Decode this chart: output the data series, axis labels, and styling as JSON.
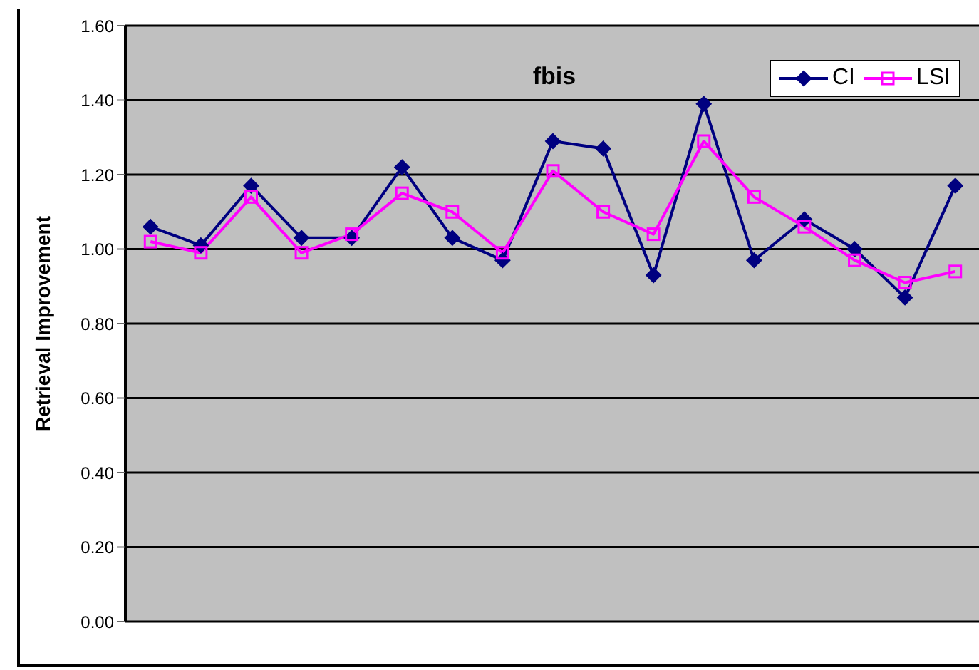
{
  "chart_data": {
    "type": "line",
    "title": "fbis",
    "ylabel": "Retrieval Improvement",
    "categories": [
      null,
      null,
      null,
      null,
      null,
      null,
      null,
      null,
      null,
      null,
      null,
      null,
      null,
      null,
      null,
      null,
      null
    ],
    "series": [
      {
        "name": "CI",
        "color": "#000080",
        "marker": "diamond",
        "values": [
          1.06,
          1.01,
          1.17,
          1.03,
          1.03,
          1.22,
          1.03,
          0.97,
          1.29,
          1.27,
          0.93,
          1.39,
          0.97,
          1.08,
          1.0,
          0.87,
          1.17
        ]
      },
      {
        "name": "LSI",
        "color": "#ff00ff",
        "marker": "square",
        "values": [
          1.02,
          0.99,
          1.14,
          0.99,
          1.04,
          1.15,
          1.1,
          0.99,
          1.21,
          1.1,
          1.04,
          1.29,
          1.14,
          1.06,
          0.97,
          0.91,
          0.94
        ]
      }
    ],
    "ylim": [
      0,
      1.6
    ],
    "yticks": [
      {
        "value": 0,
        "label": "0.00"
      },
      {
        "value": 0.2,
        "label": "0.20"
      },
      {
        "value": 0.4,
        "label": "0.40"
      },
      {
        "value": 0.6,
        "label": "0.60"
      },
      {
        "value": 0.8,
        "label": "0.80"
      },
      {
        "value": 1.0,
        "label": "1.00"
      },
      {
        "value": 1.2,
        "label": "1.20"
      },
      {
        "value": 1.4,
        "label": "1.40"
      },
      {
        "value": 1.6,
        "label": "1.60"
      }
    ],
    "grid": "y",
    "legend": "top right",
    "tick_labels": "y"
  }
}
